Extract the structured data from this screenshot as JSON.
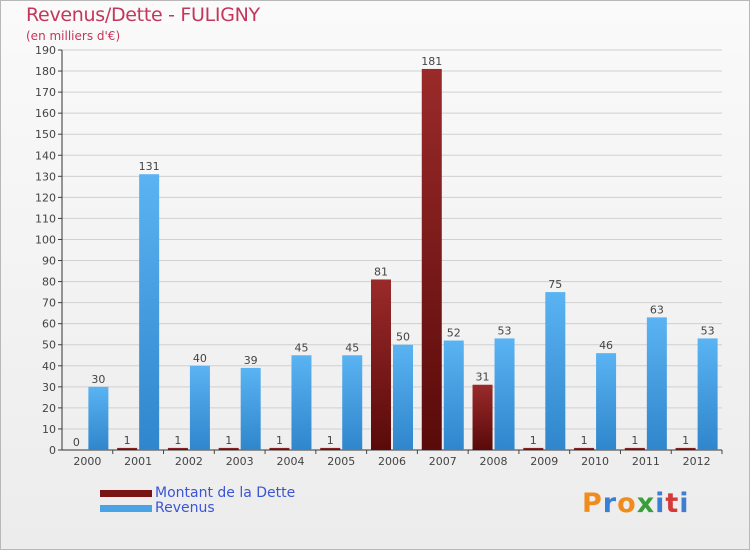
{
  "chart_data": {
    "type": "bar",
    "title": "Revenus/Dette - FULIGNY",
    "subtitle": "(en milliers d'€)",
    "categories": [
      "2000",
      "2001",
      "2002",
      "2003",
      "2004",
      "2005",
      "2006",
      "2007",
      "2008",
      "2009",
      "2010",
      "2011",
      "2012"
    ],
    "series": [
      {
        "name": "Montant de la Dette",
        "color": "#7a1414",
        "values": [
          0,
          1,
          1,
          1,
          1,
          1,
          81,
          181,
          31,
          1,
          1,
          1,
          1
        ]
      },
      {
        "name": "Revenus",
        "color": "#4aa3e6",
        "values": [
          30,
          131,
          40,
          39,
          45,
          45,
          50,
          52,
          53,
          75,
          46,
          63,
          53
        ]
      }
    ],
    "ylim": [
      0,
      190
    ],
    "ytick_step": 10,
    "legend_position": "bottom-left"
  },
  "logo": {
    "letters": [
      "P",
      "r",
      "o",
      "x",
      "i",
      "t",
      "i"
    ],
    "colors": [
      "#f08c1e",
      "#3a7fd4",
      "#f08c1e",
      "#3a9f3a",
      "#3a7fd4",
      "#d43a3a",
      "#3a7fd4"
    ]
  }
}
